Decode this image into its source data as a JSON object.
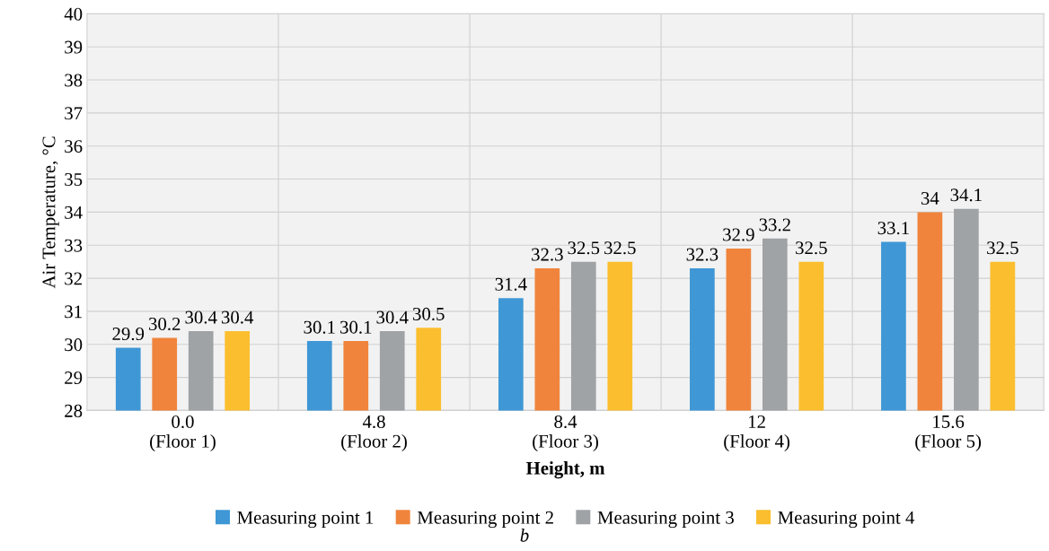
{
  "chart_data": {
    "type": "bar",
    "xlabel": "Height, m",
    "ylabel": "Air Temperature, °C",
    "categories": [
      "0.0\n(Floor 1)",
      "4.8\n(Floor 2)",
      "8.4\n(Floor 3)",
      "12\n(Floor 4)",
      "15.6\n(Floor 5)"
    ],
    "series": [
      {
        "name": "Measuring point 1",
        "color": "#3f97d5",
        "values": [
          29.9,
          30.1,
          31.4,
          32.3,
          33.1
        ]
      },
      {
        "name": "Measuring point 2",
        "color": "#f0843c",
        "values": [
          30.2,
          30.1,
          32.3,
          32.9,
          34
        ]
      },
      {
        "name": "Measuring point 3",
        "color": "#9fa3a6",
        "values": [
          30.4,
          30.4,
          32.5,
          33.2,
          34.1
        ]
      },
      {
        "name": "Measuring point 4",
        "color": "#fbbe2e",
        "values": [
          30.4,
          30.5,
          32.5,
          32.5,
          32.5
        ]
      }
    ],
    "ylim": [
      28,
      40
    ],
    "yticks": [
      28,
      29,
      30,
      31,
      32,
      33,
      34,
      35,
      36,
      37,
      38,
      39,
      40
    ],
    "grid": true,
    "legend": "bottom",
    "data_labels": true,
    "annotations": [
      "b"
    ]
  }
}
